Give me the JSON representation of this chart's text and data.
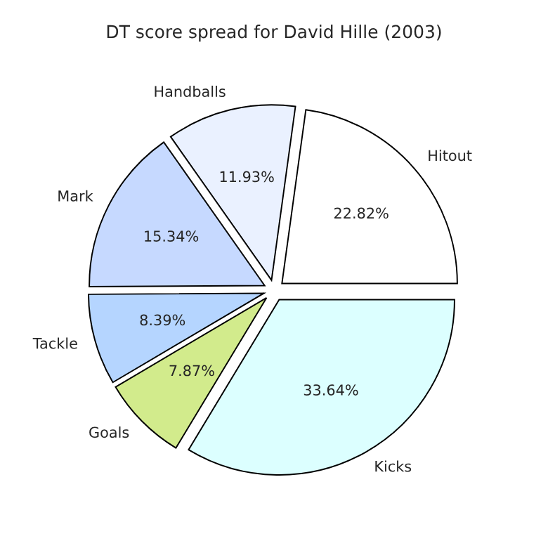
{
  "chart_data": {
    "type": "pie",
    "title": "DT score spread for David Hille (2003)",
    "categories": [
      "Hitout",
      "Handballs",
      "Mark",
      "Tackle",
      "Goals",
      "Kicks"
    ],
    "values": [
      22.82,
      11.93,
      15.34,
      8.39,
      7.87,
      33.64
    ],
    "value_labels": [
      "22.82%",
      "11.93%",
      "15.34%",
      "8.39%",
      "7.87%",
      "33.64%"
    ],
    "colors": [
      "#ffffff",
      "#eaf1ff",
      "#c6d9ff",
      "#b5d5ff",
      "#d2eb8c",
      "#dcffff"
    ]
  }
}
